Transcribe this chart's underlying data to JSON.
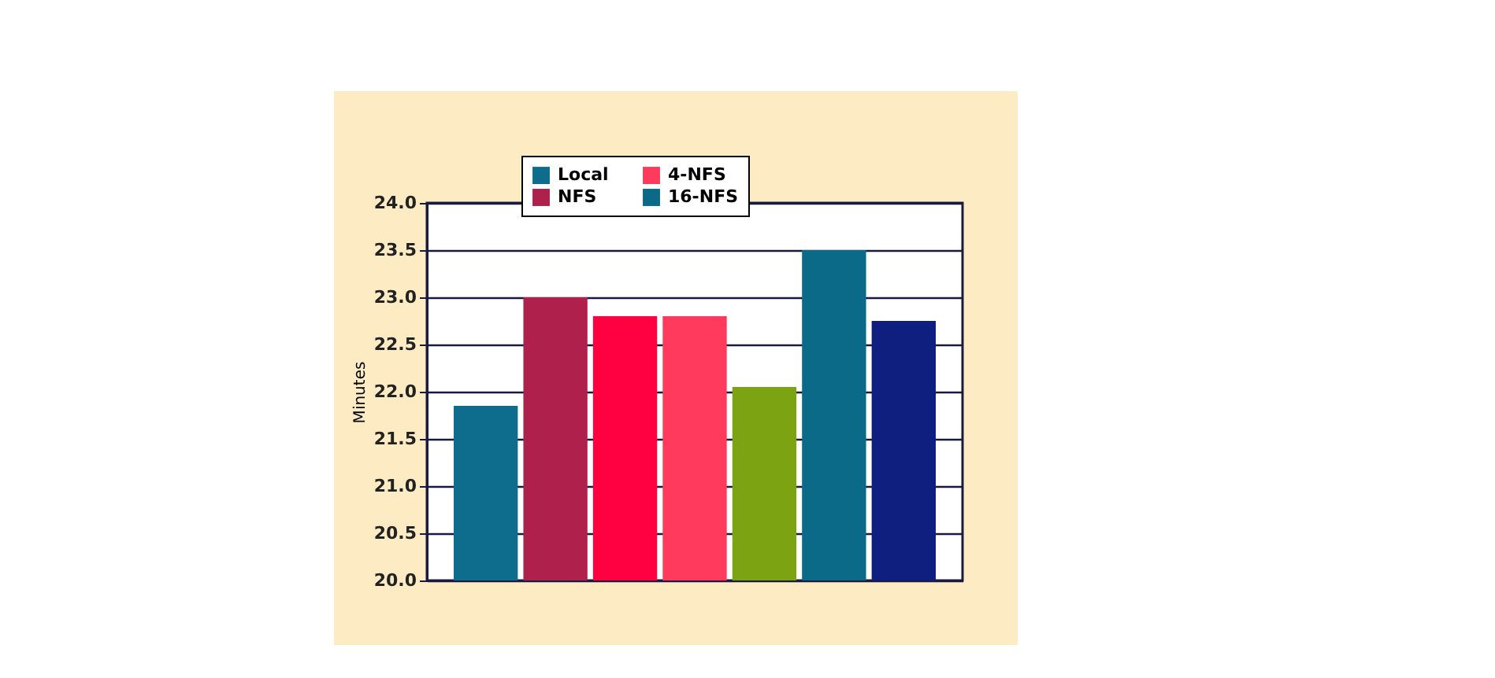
{
  "chart_data": {
    "type": "bar",
    "ylabel": "Minutes",
    "categories": [
      null
    ],
    "series": [
      {
        "name": "Local",
        "color": "#0e6d8c",
        "values": [
          21.85
        ]
      },
      {
        "name": "NFS",
        "color": "#b0204c",
        "values": [
          23.0
        ]
      },
      {
        "color": "#ff0040",
        "values": [
          22.8
        ]
      },
      {
        "name": "4-NFS",
        "color": "#ff3a5c",
        "values": [
          22.8
        ]
      },
      {
        "color": "#7ba312",
        "values": [
          22.05
        ]
      },
      {
        "name": "16-NFS",
        "color": "#0b6a88",
        "values": [
          23.5
        ]
      },
      {
        "color": "#0f1f80",
        "values": [
          22.75
        ]
      }
    ],
    "ylim": [
      20,
      24
    ],
    "yticks": [
      {
        "value": 20,
        "label": "20.0"
      },
      20.5,
      {
        "value": 21,
        "label": "21.0"
      },
      21.5,
      {
        "value": 22,
        "label": "22.0"
      },
      22.5,
      {
        "value": 23,
        "label": "23.0"
      },
      23.5,
      {
        "value": 24,
        "label": "24.0"
      }
    ],
    "grid": "y",
    "legend": "top"
  }
}
